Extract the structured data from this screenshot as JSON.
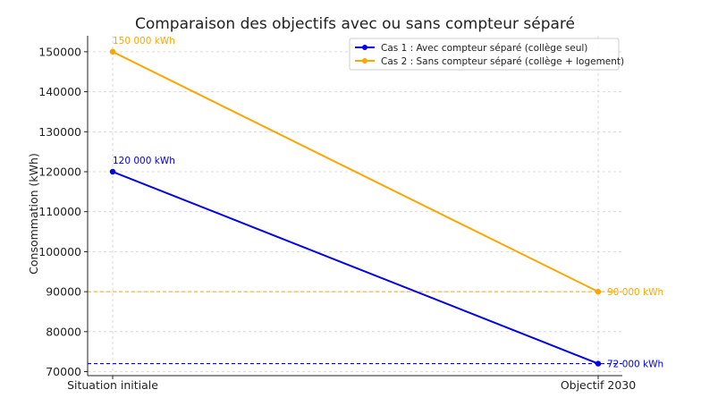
{
  "chart_data": {
    "type": "line",
    "title": "Comparaison des objectifs avec ou sans compteur séparé",
    "xlabel": "",
    "ylabel": "Consommation (kWh)",
    "categories": [
      "Situation initiale",
      "Objectif 2030"
    ],
    "ylim": [
      69000,
      154000
    ],
    "yticks": [
      70000,
      80000,
      90000,
      100000,
      110000,
      120000,
      130000,
      140000,
      150000
    ],
    "grid": true,
    "legend_position": "top-right",
    "series": [
      {
        "name": "Cas 1 : Avec compteur séparé (collège seul)",
        "values": [
          120000,
          72000
        ],
        "color": "#0000ee"
      },
      {
        "name": "Cas 2 : Sans compteur séparé (collège + logement)",
        "values": [
          150000,
          90000
        ],
        "color": "#ffa500"
      }
    ],
    "reference_lines": [
      {
        "y": 90000,
        "color": "#ffa500",
        "style": "dashed"
      },
      {
        "y": 72000,
        "color": "#0000ee",
        "style": "dashed"
      }
    ],
    "annotations": [
      {
        "text": "150 000 kWh",
        "x": "Situation initiale",
        "y": 150000,
        "color": "#ffa500"
      },
      {
        "text": "120 000 kWh",
        "x": "Situation initiale",
        "y": 120000,
        "color": "#0000ee"
      },
      {
        "text": "90 000 kWh",
        "x": "Objectif 2030",
        "y": 90000,
        "color": "#ffa500"
      },
      {
        "text": "72 000 kWh",
        "x": "Objectif 2030",
        "y": 72000,
        "color": "#0000ee"
      }
    ]
  }
}
